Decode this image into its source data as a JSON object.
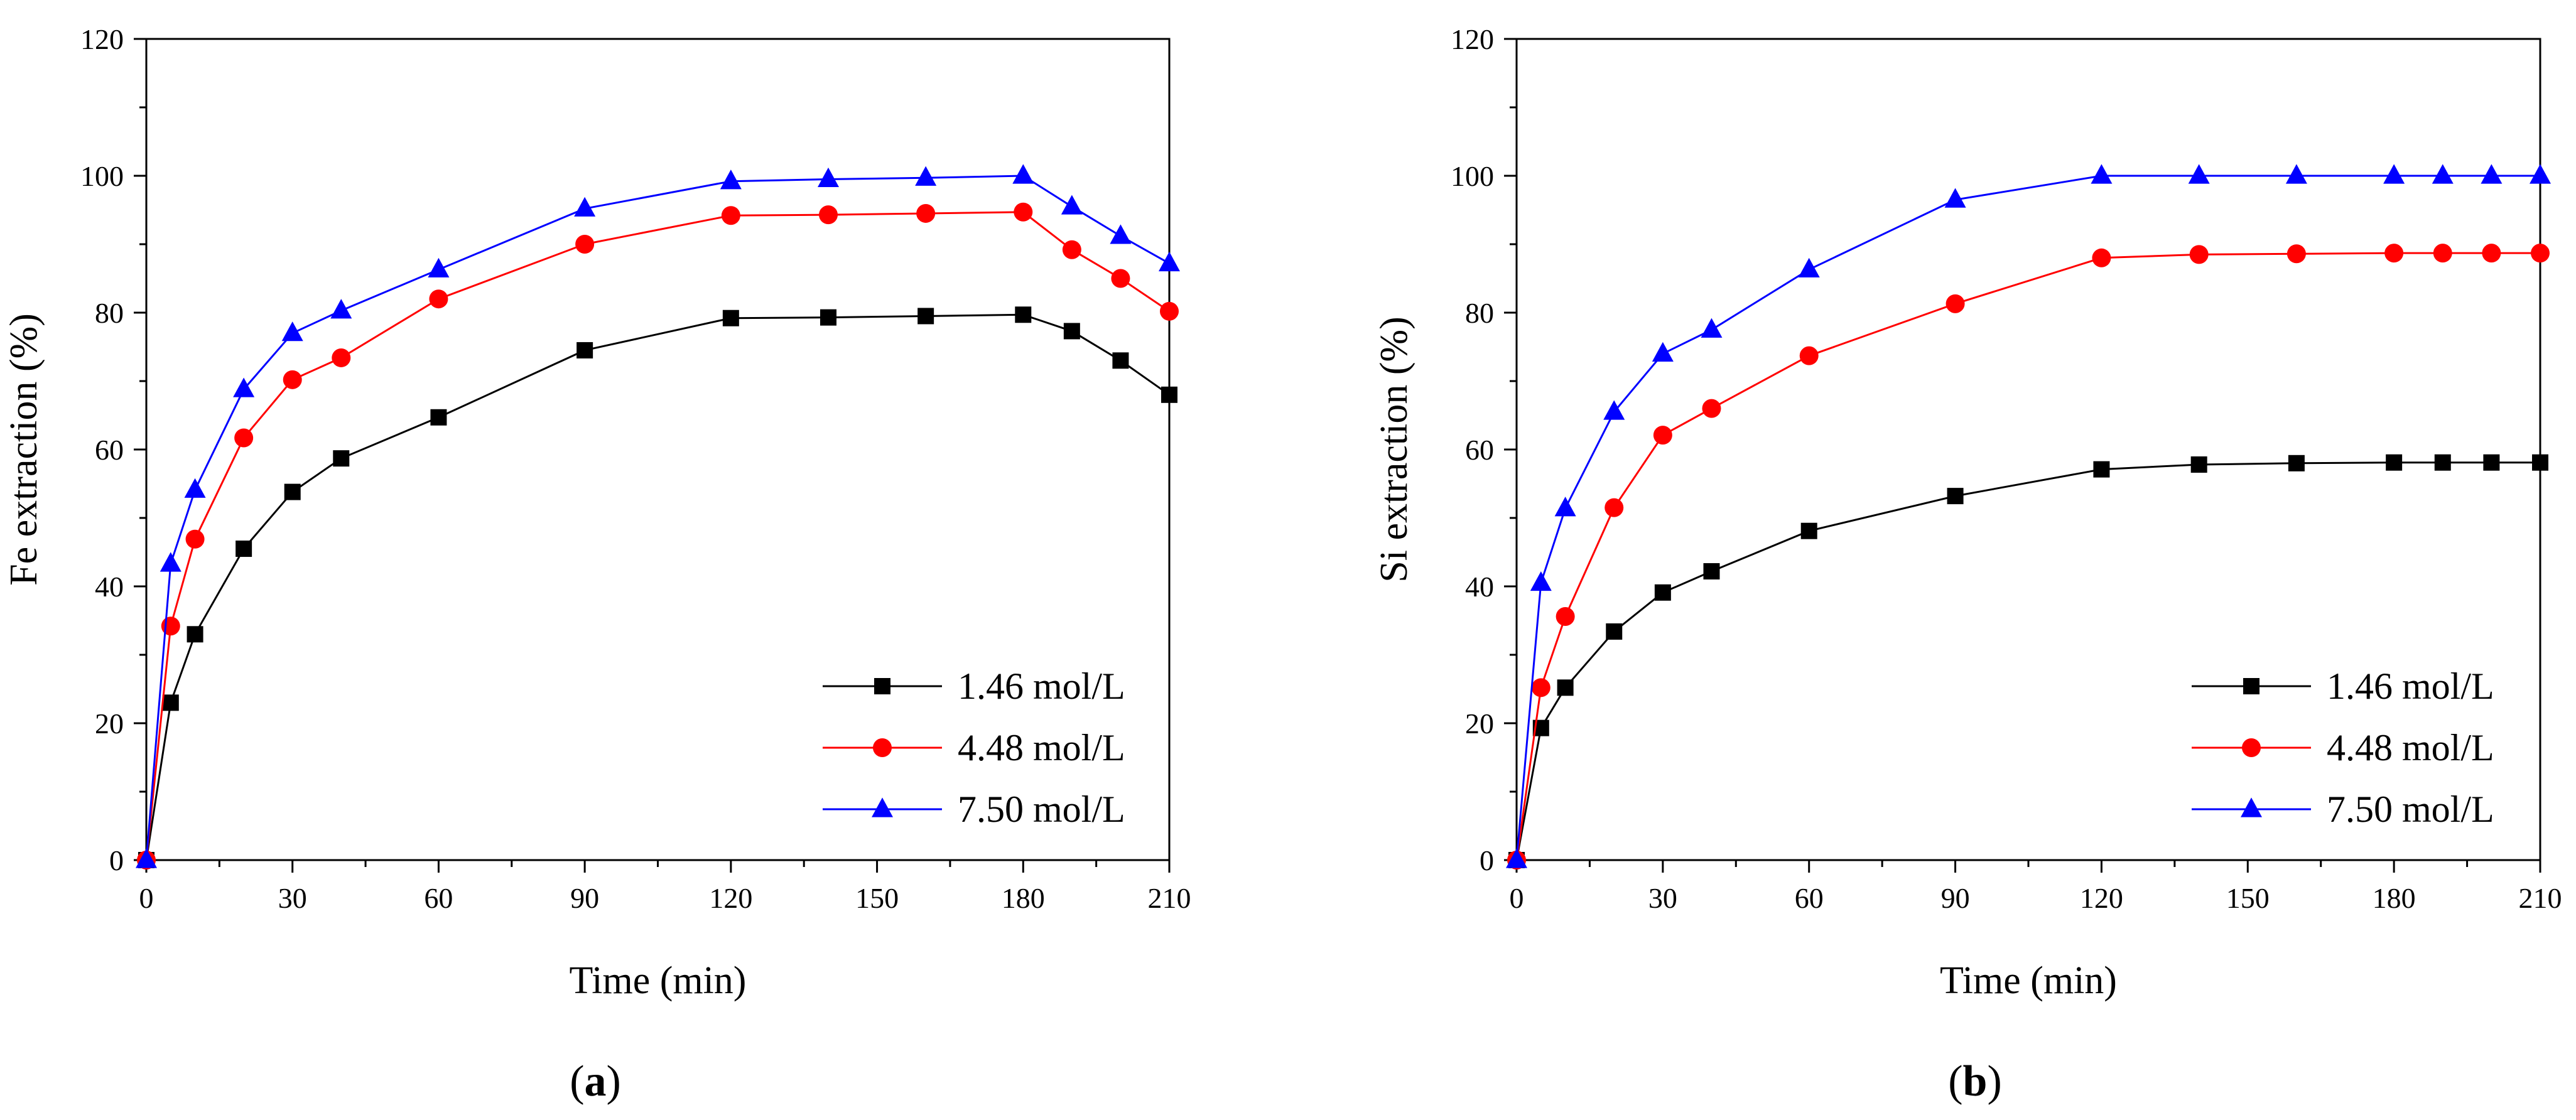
{
  "chart_data": [
    {
      "type": "line",
      "panel_label": "a",
      "xlabel": "Time (min)",
      "ylabel": "Fe extraction (%)",
      "xlim": [
        0,
        210
      ],
      "ylim": [
        0,
        120
      ],
      "xticks": [
        0,
        30,
        60,
        90,
        120,
        150,
        180,
        210
      ],
      "yticks": [
        0,
        20,
        40,
        60,
        80,
        100,
        120
      ],
      "grid": false,
      "legend_position": "bottom-right",
      "series": [
        {
          "name": "1.46 mol/L",
          "color": "#000000",
          "marker": "square",
          "x": [
            0,
            5,
            10,
            20,
            30,
            40,
            60,
            90,
            120,
            140,
            160,
            180,
            190,
            200,
            210
          ],
          "y": [
            0,
            23.0,
            33.0,
            45.5,
            53.8,
            58.7,
            64.7,
            74.5,
            79.2,
            79.3,
            79.5,
            79.7,
            77.3,
            73.0,
            68.0
          ]
        },
        {
          "name": "4.48 mol/L",
          "color": "#ff0000",
          "marker": "circle",
          "x": [
            0,
            5,
            10,
            20,
            30,
            40,
            60,
            90,
            120,
            140,
            160,
            180,
            190,
            200,
            210
          ],
          "y": [
            0,
            34.2,
            46.9,
            61.7,
            70.2,
            73.4,
            82.0,
            90.0,
            94.2,
            94.3,
            94.5,
            94.7,
            89.2,
            85.0,
            80.2
          ]
        },
        {
          "name": "7.50 mol/L",
          "color": "#0000ff",
          "marker": "triangle",
          "x": [
            0,
            5,
            10,
            20,
            30,
            40,
            60,
            90,
            120,
            140,
            160,
            180,
            190,
            200,
            210
          ],
          "y": [
            0,
            43.3,
            54.1,
            68.8,
            77.0,
            80.3,
            86.3,
            95.2,
            99.2,
            99.5,
            99.7,
            100.0,
            95.5,
            91.2,
            87.2
          ]
        }
      ]
    },
    {
      "type": "line",
      "panel_label": "b",
      "xlabel": "Time (min)",
      "ylabel": "Si extraction (%)",
      "xlim": [
        0,
        210
      ],
      "ylim": [
        0,
        120
      ],
      "xticks": [
        0,
        30,
        60,
        90,
        120,
        150,
        180,
        210
      ],
      "yticks": [
        0,
        20,
        40,
        60,
        80,
        100,
        120
      ],
      "grid": false,
      "legend_position": "bottom-right",
      "series": [
        {
          "name": "1.46 mol/L",
          "color": "#000000",
          "marker": "square",
          "x": [
            0,
            5,
            10,
            20,
            30,
            40,
            60,
            90,
            120,
            140,
            160,
            180,
            190,
            200,
            210
          ],
          "y": [
            0,
            19.3,
            25.2,
            33.4,
            39.1,
            42.2,
            48.1,
            53.2,
            57.1,
            57.8,
            58.0,
            58.1,
            58.1,
            58.1,
            58.1
          ]
        },
        {
          "name": "4.48 mol/L",
          "color": "#ff0000",
          "marker": "circle",
          "x": [
            0,
            5,
            10,
            20,
            30,
            40,
            60,
            90,
            120,
            140,
            160,
            180,
            190,
            200,
            210
          ],
          "y": [
            0,
            25.2,
            35.6,
            51.5,
            62.1,
            66.0,
            73.7,
            81.3,
            88.0,
            88.5,
            88.6,
            88.7,
            88.7,
            88.7,
            88.7
          ]
        },
        {
          "name": "7.50 mol/L",
          "color": "#0000ff",
          "marker": "triangle",
          "x": [
            0,
            5,
            10,
            20,
            30,
            40,
            60,
            90,
            120,
            140,
            160,
            180,
            190,
            200,
            210
          ],
          "y": [
            0,
            40.5,
            51.4,
            65.5,
            74.0,
            77.5,
            86.3,
            96.5,
            100.0,
            100.0,
            100.0,
            100.0,
            100.0,
            100.0,
            100.0
          ]
        }
      ]
    }
  ]
}
